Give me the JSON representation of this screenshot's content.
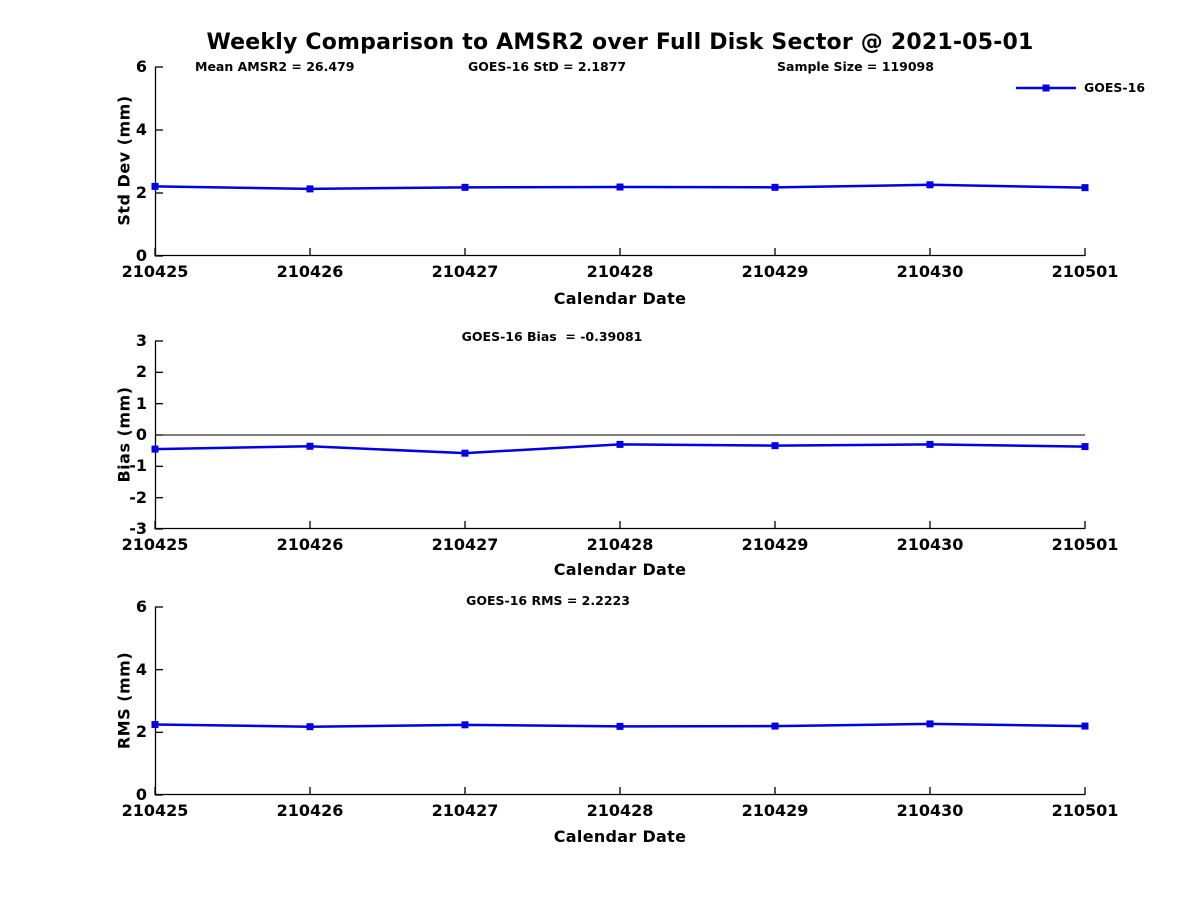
{
  "page": {
    "title": "Weekly Comparison to AMSR2 over Full Disk Sector @ 2021-05-01"
  },
  "colors": {
    "accent": "#0000e6",
    "axis": "#000000",
    "text": "#000000"
  },
  "legend": {
    "label": "GOES-16",
    "marker": "filled-square",
    "position": "top-right"
  },
  "chart_data": [
    {
      "id": "stddev",
      "type": "line",
      "categories": [
        "210425",
        "210426",
        "210427",
        "210428",
        "210429",
        "210430",
        "210501"
      ],
      "series": [
        {
          "name": "GOES-16",
          "values": [
            2.21,
            2.13,
            2.18,
            2.19,
            2.18,
            2.26,
            2.17
          ]
        }
      ],
      "stats_texts": [
        "Mean AMSR2 = 26.479",
        "GOES-16 StD = 2.1877",
        "Sample Size = 119098"
      ],
      "xlabel": "Calendar Date",
      "ylabel": "Std Dev (mm)",
      "ylim": [
        0,
        6
      ],
      "yticks": [
        0,
        2,
        4,
        6
      ],
      "grid": false,
      "zero_line": false,
      "legend_entries": [
        "GOES-16"
      ]
    },
    {
      "id": "bias",
      "type": "line",
      "title": "GOES-16 Bias  = -0.39081",
      "categories": [
        "210425",
        "210426",
        "210427",
        "210428",
        "210429",
        "210430",
        "210501"
      ],
      "series": [
        {
          "name": "GOES-16",
          "values": [
            -0.45,
            -0.36,
            -0.58,
            -0.3,
            -0.34,
            -0.3,
            -0.37
          ]
        }
      ],
      "xlabel": "Calendar Date",
      "ylabel": "Bias (mm)",
      "ylim": [
        -3,
        3
      ],
      "yticks": [
        -3,
        -2,
        -1,
        0,
        1,
        2,
        3
      ],
      "grid": false,
      "zero_line": true,
      "legend_entries": []
    },
    {
      "id": "rms",
      "type": "line",
      "title": "GOES-16 RMS = 2.2223",
      "categories": [
        "210425",
        "210426",
        "210427",
        "210428",
        "210429",
        "210430",
        "210501"
      ],
      "series": [
        {
          "name": "GOES-16",
          "values": [
            2.25,
            2.18,
            2.24,
            2.19,
            2.2,
            2.27,
            2.2
          ]
        }
      ],
      "xlabel": "Calendar Date",
      "ylabel": "RMS (mm)",
      "ylim": [
        0,
        6
      ],
      "yticks": [
        0,
        2,
        4,
        6
      ],
      "grid": false,
      "zero_line": false,
      "legend_entries": []
    }
  ]
}
